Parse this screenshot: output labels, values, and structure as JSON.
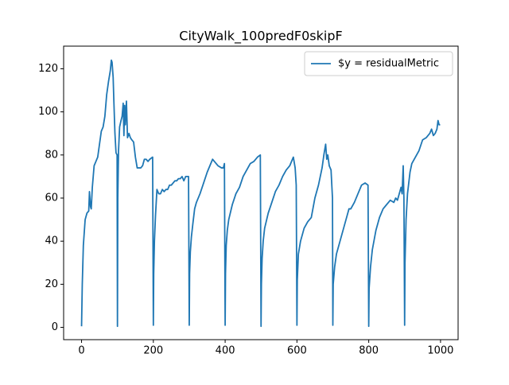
{
  "chart_data": {
    "type": "line",
    "title": "CityWalk_100predF0skipF",
    "x": [
      0,
      2,
      5,
      10,
      15,
      20,
      22,
      25,
      27,
      30,
      35,
      40,
      45,
      50,
      55,
      60,
      65,
      70,
      75,
      80,
      83,
      85,
      88,
      90,
      93,
      96,
      99,
      100,
      101,
      103,
      106,
      110,
      113,
      116,
      118,
      120,
      122,
      125,
      128,
      132,
      136,
      140,
      145,
      150,
      155,
      160,
      165,
      170,
      175,
      180,
      185,
      190,
      198,
      200,
      201,
      203,
      206,
      210,
      215,
      220,
      225,
      230,
      235,
      240,
      245,
      250,
      255,
      260,
      265,
      270,
      275,
      280,
      285,
      290,
      298,
      300,
      301,
      303,
      306,
      310,
      315,
      320,
      330,
      340,
      350,
      360,
      365,
      370,
      380,
      390,
      395,
      398,
      400,
      401,
      403,
      406,
      410,
      420,
      430,
      440,
      450,
      460,
      470,
      480,
      490,
      498,
      500,
      501,
      503,
      506,
      510,
      520,
      530,
      540,
      550,
      560,
      570,
      580,
      590,
      595,
      598,
      600,
      601,
      604,
      610,
      620,
      630,
      640,
      650,
      660,
      670,
      675,
      680,
      683,
      686,
      690,
      695,
      699,
      700,
      701,
      705,
      710,
      720,
      730,
      740,
      745,
      750,
      760,
      770,
      780,
      790,
      798,
      800,
      801,
      805,
      810,
      820,
      830,
      840,
      850,
      860,
      870,
      875,
      880,
      885,
      890,
      893,
      896,
      898,
      900,
      901,
      904,
      908,
      915,
      920,
      930,
      940,
      950,
      960,
      970,
      975,
      980,
      985,
      990,
      993,
      996,
      999
    ],
    "series": [
      {
        "name": "$y = residualMetric",
        "color": "#1f77b4",
        "values": [
          0.5,
          20,
          38,
          50,
          53,
          54,
          63,
          56,
          55,
          65,
          75,
          77,
          79,
          85,
          91,
          93,
          98,
          108,
          114,
          119,
          124,
          123,
          116,
          105,
          90,
          81,
          80,
          0.5,
          60,
          82,
          93,
          96,
          98,
          104,
          89,
          103,
          94,
          105,
          88,
          90,
          88,
          87,
          86,
          79,
          74,
          74,
          74,
          75,
          78,
          78,
          77,
          78,
          79,
          1,
          25,
          40,
          52,
          64,
          62,
          62,
          64,
          63,
          64,
          64,
          66,
          66,
          67,
          68,
          68,
          69,
          69,
          70,
          68,
          70,
          70,
          1,
          25,
          35,
          42,
          48,
          55,
          58,
          62,
          67,
          72,
          76,
          78,
          77,
          75,
          74,
          74,
          76,
          1,
          25,
          38,
          45,
          50,
          57,
          62,
          65,
          70,
          73,
          76,
          77,
          79,
          80,
          0.5,
          20,
          32,
          40,
          46,
          53,
          58,
          63,
          66,
          70,
          73,
          75,
          79,
          74,
          66,
          1,
          22,
          34,
          40,
          46,
          49,
          51,
          60,
          66,
          74,
          80,
          85,
          78,
          80,
          75,
          73,
          60,
          1,
          20,
          28,
          34,
          40,
          46,
          52,
          55,
          55,
          58,
          62,
          66,
          67,
          66,
          0.5,
          18,
          28,
          36,
          45,
          51,
          55,
          57,
          59,
          58,
          60,
          59,
          62,
          65,
          62,
          75,
          60,
          1,
          30,
          50,
          62,
          72,
          76,
          79,
          82,
          87,
          88,
          90,
          92,
          89,
          90,
          92,
          96,
          94,
          94
        ]
      }
    ],
    "xlim": [
      -49.95,
      1048.95
    ],
    "ylim": [
      -5.7,
      130.5
    ],
    "xticks": [
      0,
      200,
      400,
      600,
      800,
      1000
    ],
    "yticks": [
      0,
      20,
      40,
      60,
      80,
      100,
      120
    ],
    "legend": "upper right"
  }
}
